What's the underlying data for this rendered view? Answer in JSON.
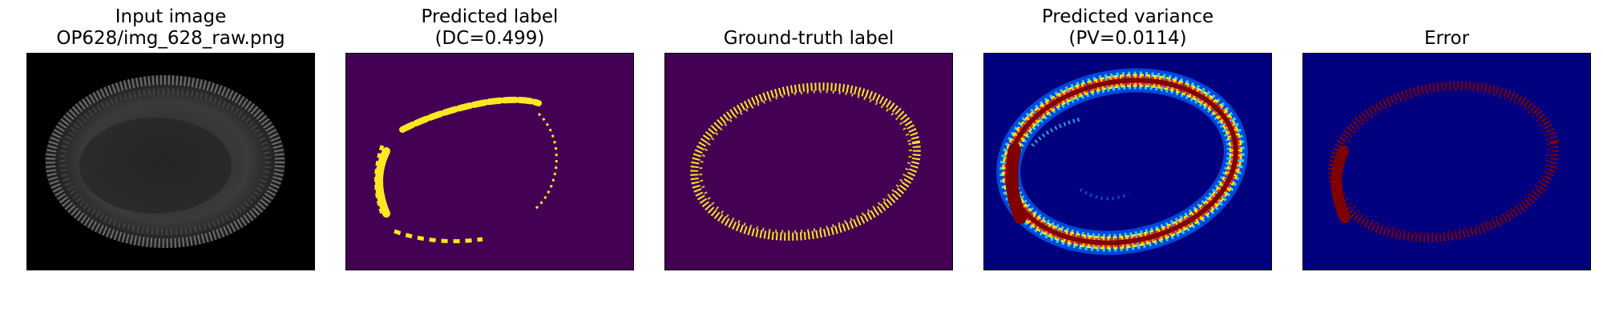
{
  "figure": {
    "panels": [
      {
        "id": "input",
        "title_line1": "Input image",
        "title_line2": "OP628/img_628_raw.png"
      },
      {
        "id": "predicted-label",
        "title_line1": "Predicted label",
        "title_line2": "(DC=0.499)"
      },
      {
        "id": "ground-truth",
        "title_line1": "Ground-truth label",
        "title_line2": ""
      },
      {
        "id": "predicted-variance",
        "title_line1": "Predicted variance",
        "title_line2": "(PV=0.0114)"
      },
      {
        "id": "error",
        "title_line1": "Error",
        "title_line2": ""
      }
    ]
  },
  "colors": {
    "viridis_background": "#440154",
    "viridis_foreground": "#fde725",
    "jet_background": "#00007f",
    "jet_high": "#7f0000",
    "raw_background": "#000000",
    "raw_signal": "#9a9a9a"
  }
}
